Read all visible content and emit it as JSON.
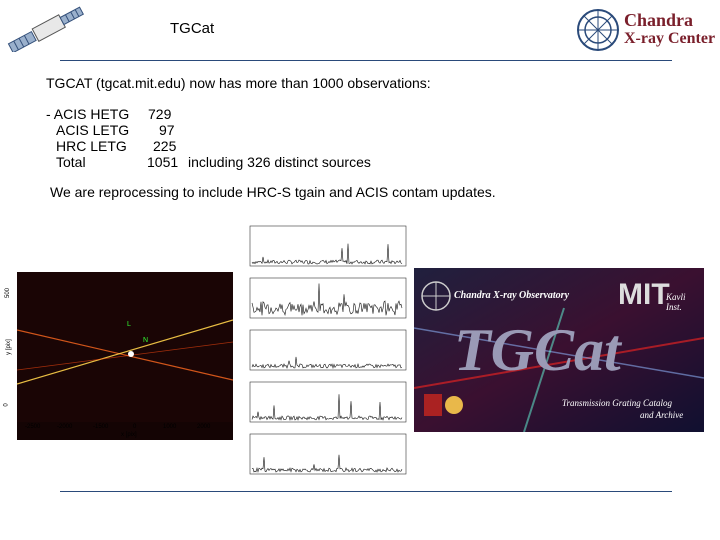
{
  "header": {
    "title": "TGCat",
    "logo_line1": "Chandra",
    "logo_line2": "X-ray Center"
  },
  "intro": "TGCAT (tgcat.mit.edu) now has more than 1000 observations:",
  "stats": [
    {
      "label": "- ACIS HETG",
      "count": "729",
      "note": ""
    },
    {
      "label": "ACIS LETG",
      "count": "97",
      "note": ""
    },
    {
      "label": "HRC LETG",
      "count": "225",
      "note": ""
    },
    {
      "label": "Total",
      "count": "1051",
      "note": "including 326 distinct sources"
    }
  ],
  "reprocessing": "We are reprocessing to include HRC-S tgain and ACIS contam updates.",
  "sky_image": {
    "x_ticks": [
      "-2500",
      "-2000",
      "-1500",
      "0",
      "1000",
      "2000"
    ],
    "x_label": "x [pix]",
    "y_label": "y [pix]",
    "y_ticks": [
      "500",
      "0"
    ],
    "markers": [
      "L",
      "N"
    ]
  },
  "banner": {
    "heading": "Chandra X-ray Observatory",
    "mit": "MIT",
    "kavli1": "Kavli",
    "kavli2": "Inst.",
    "big": "TGCat",
    "sub1": "Transmission Grating Catalog",
    "sub2": "and Archive"
  },
  "colors": {
    "rule": "#2a4a7a",
    "logo_text": "#7a1f2b",
    "dispersion": "#ffd24a",
    "banner_bg": "#1a1a33"
  }
}
